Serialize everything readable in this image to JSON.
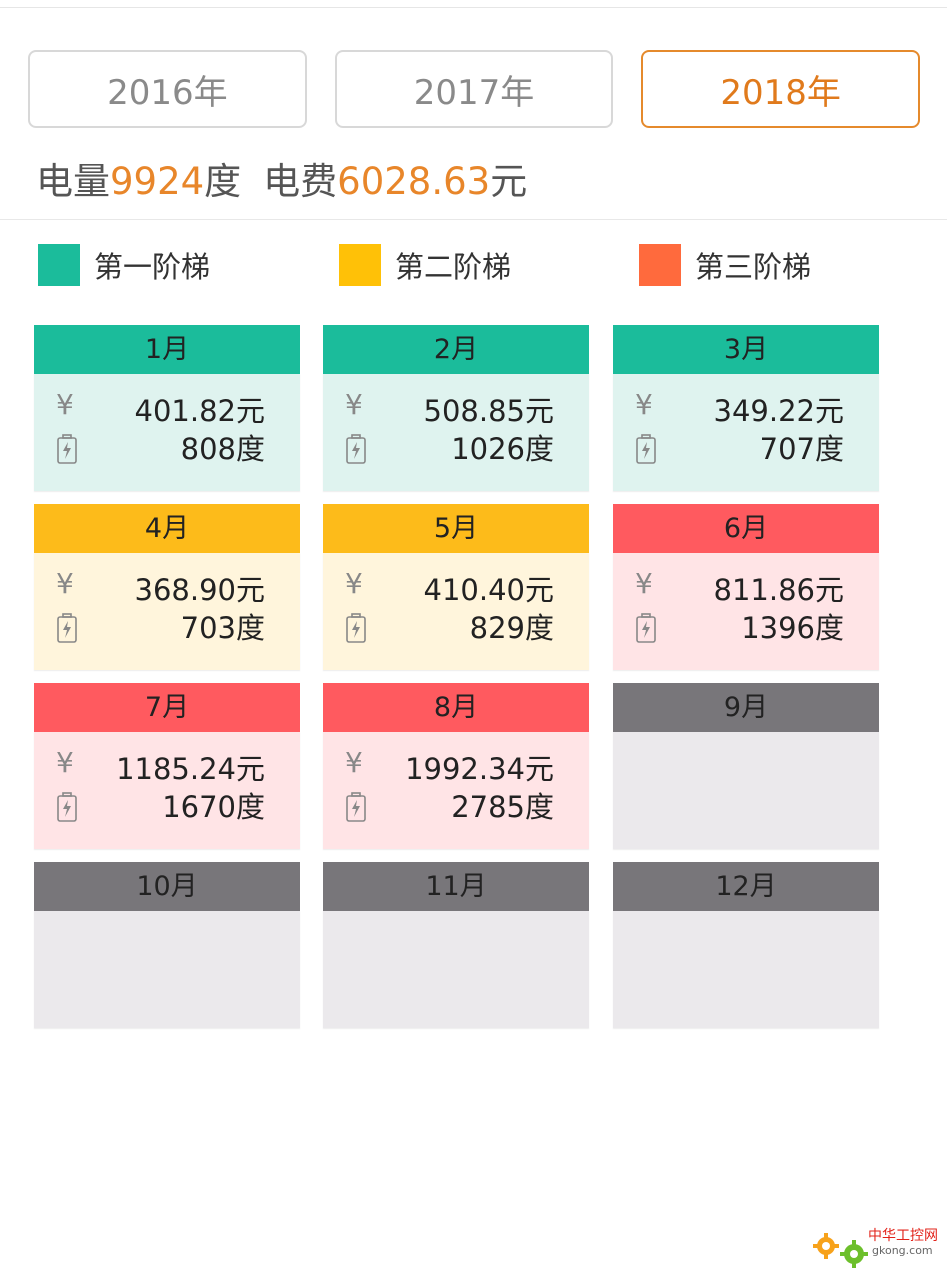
{
  "years": [
    {
      "label": "2016年",
      "active": false
    },
    {
      "label": "2017年",
      "active": false
    },
    {
      "label": "2018年",
      "active": true
    }
  ],
  "summary": {
    "kwh_label": "电量",
    "kwh_value": "9924",
    "kwh_unit": "度",
    "fee_label": "电费",
    "fee_value": "6028.63",
    "fee_unit": "元"
  },
  "legend": [
    {
      "label": "第一阶梯",
      "color": "#1bbc9b"
    },
    {
      "label": "第二阶梯",
      "color": "#ffc107"
    },
    {
      "label": "第三阶梯",
      "color": "#ff6a3d"
    }
  ],
  "colors": {
    "tier1_head": "#1bbc9b",
    "tier1_body": "#dff3ef",
    "tier2_head": "#fdbb1a",
    "tier2_body": "#fff5dc",
    "tier3_head": "#ff5a5f",
    "tier3_body": "#ffe4e6",
    "empty_head": "#78767a",
    "empty_body": "#ebe9ec"
  },
  "months": [
    {
      "label": "1月",
      "tier": 1,
      "cost": "401.82元",
      "kwh": "808度"
    },
    {
      "label": "2月",
      "tier": 1,
      "cost": "508.85元",
      "kwh": "1026度"
    },
    {
      "label": "3月",
      "tier": 1,
      "cost": "349.22元",
      "kwh": "707度"
    },
    {
      "label": "4月",
      "tier": 2,
      "cost": "368.90元",
      "kwh": "703度"
    },
    {
      "label": "5月",
      "tier": 2,
      "cost": "410.40元",
      "kwh": "829度"
    },
    {
      "label": "6月",
      "tier": 3,
      "cost": "811.86元",
      "kwh": "1396度"
    },
    {
      "label": "7月",
      "tier": 3,
      "cost": "1185.24元",
      "kwh": "1670度"
    },
    {
      "label": "8月",
      "tier": 3,
      "cost": "1992.34元",
      "kwh": "2785度"
    },
    {
      "label": "9月",
      "tier": 0,
      "cost": "",
      "kwh": ""
    },
    {
      "label": "10月",
      "tier": 0,
      "cost": "",
      "kwh": ""
    },
    {
      "label": "11月",
      "tier": 0,
      "cost": "",
      "kwh": ""
    },
    {
      "label": "12月",
      "tier": 0,
      "cost": "",
      "kwh": ""
    }
  ],
  "icons": {
    "cost": "yen-icon",
    "kwh": "battery-icon"
  },
  "watermark": {
    "text": "中华工控网",
    "sub": "gkong.com"
  }
}
